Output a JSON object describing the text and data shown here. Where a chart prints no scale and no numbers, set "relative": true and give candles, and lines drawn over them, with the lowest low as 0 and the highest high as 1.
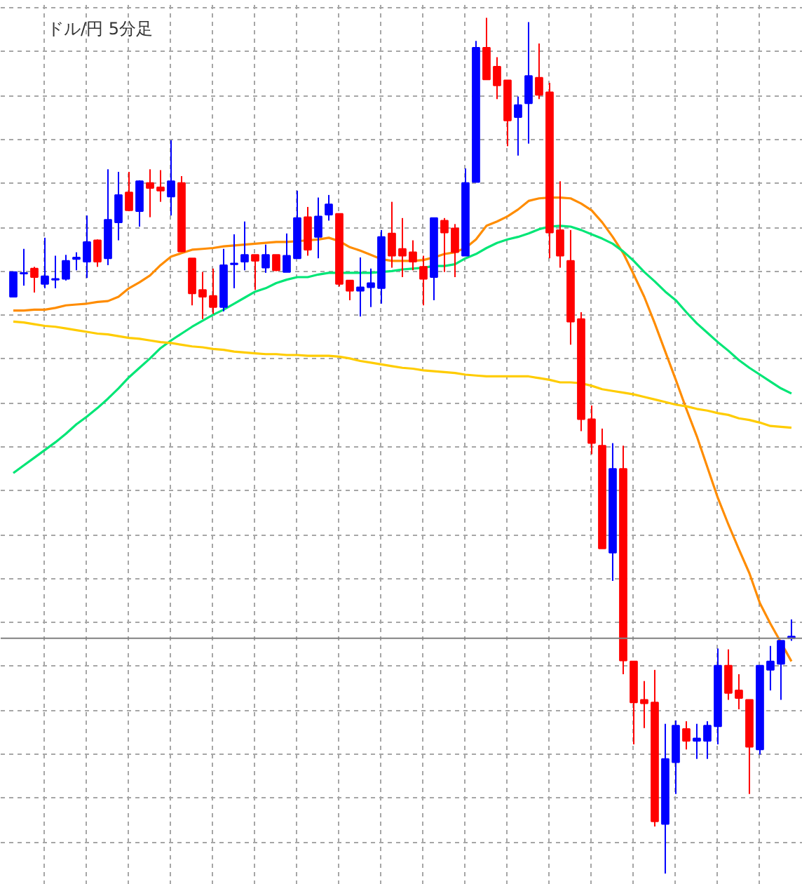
{
  "chart_data": {
    "type": "candlestick",
    "title": "ドル/円 5分足",
    "relative": true,
    "grid": true,
    "tick_labels": false,
    "categories": [
      null,
      null,
      null,
      null,
      null,
      null,
      null,
      null,
      null,
      null,
      null,
      null,
      null,
      null,
      null,
      null,
      null,
      null,
      null,
      null,
      null,
      null,
      null,
      null,
      null,
      null,
      null,
      null,
      null,
      null,
      null,
      null,
      null,
      null,
      null,
      null,
      null,
      null,
      null,
      null,
      null,
      null,
      null,
      null,
      null,
      null,
      null,
      null,
      null,
      null,
      null,
      null,
      null,
      null,
      null,
      null,
      null,
      null,
      null,
      null,
      null,
      null,
      null,
      null,
      null,
      null,
      null,
      null,
      null,
      null,
      null,
      null,
      null,
      null,
      null
    ],
    "ohlc": [
      [
        0.674,
        0.703,
        0.674,
        0.703
      ],
      [
        0.701,
        0.73,
        0.687,
        0.702
      ],
      [
        0.707,
        0.709,
        0.679,
        0.697
      ],
      [
        0.689,
        0.743,
        0.684,
        0.698
      ],
      [
        0.694,
        0.722,
        0.684,
        0.695
      ],
      [
        0.695,
        0.723,
        0.693,
        0.716
      ],
      [
        0.718,
        0.726,
        0.705,
        0.72
      ],
      [
        0.715,
        0.769,
        0.696,
        0.738
      ],
      [
        0.74,
        0.741,
        0.709,
        0.715
      ],
      [
        0.719,
        0.823,
        0.711,
        0.764
      ],
      [
        0.761,
        0.82,
        0.74,
        0.793
      ],
      [
        0.796,
        0.82,
        0.774,
        0.775
      ],
      [
        0.774,
        0.81,
        0.756,
        0.809
      ],
      [
        0.807,
        0.823,
        0.767,
        0.801
      ],
      [
        0.802,
        0.822,
        0.785,
        0.798
      ],
      [
        0.791,
        0.857,
        0.769,
        0.809
      ],
      [
        0.807,
        0.815,
        0.727,
        0.727
      ],
      [
        0.719,
        0.719,
        0.664,
        0.678
      ],
      [
        0.682,
        0.703,
        0.648,
        0.674
      ],
      [
        0.675,
        0.707,
        0.654,
        0.662
      ],
      [
        0.662,
        0.73,
        0.657,
        0.711
      ],
      [
        0.712,
        0.747,
        0.684,
        0.713
      ],
      [
        0.715,
        0.762,
        0.705,
        0.723
      ],
      [
        0.723,
        0.723,
        0.682,
        0.716
      ],
      [
        0.708,
        0.735,
        0.702,
        0.723
      ],
      [
        0.723,
        0.723,
        0.704,
        0.705
      ],
      [
        0.703,
        0.748,
        0.703,
        0.722
      ],
      [
        0.719,
        0.798,
        0.719,
        0.766
      ],
      [
        0.767,
        0.779,
        0.722,
        0.729
      ],
      [
        0.744,
        0.79,
        0.719,
        0.768
      ],
      [
        0.77,
        0.793,
        0.763,
        0.782
      ],
      [
        0.771,
        0.771,
        0.686,
        0.689
      ],
      [
        0.693,
        0.693,
        0.67,
        0.681
      ],
      [
        0.681,
        0.72,
        0.651,
        0.685
      ],
      [
        0.685,
        0.707,
        0.662,
        0.69
      ],
      [
        0.684,
        0.752,
        0.666,
        0.744
      ],
      [
        0.748,
        0.785,
        0.708,
        0.722
      ],
      [
        0.73,
        0.766,
        0.697,
        0.722
      ],
      [
        0.726,
        0.74,
        0.705,
        0.715
      ],
      [
        0.709,
        0.722,
        0.664,
        0.695
      ],
      [
        0.697,
        0.766,
        0.67,
        0.766
      ],
      [
        0.763,
        0.766,
        0.703,
        0.749
      ],
      [
        0.754,
        0.759,
        0.697,
        0.726
      ],
      [
        0.722,
        0.824,
        0.722,
        0.807
      ],
      [
        0.808,
        0.973,
        0.808,
        0.965
      ],
      [
        0.965,
        1,
        0.928,
        0.928
      ],
      [
        0.943,
        0.954,
        0.905,
        0.921
      ],
      [
        0.927,
        0.927,
        0.85,
        0.88
      ],
      [
        0.884,
        0.908,
        0.839,
        0.898
      ],
      [
        0.9,
        0.995,
        0.853,
        0.932
      ],
      [
        0.93,
        0.97,
        0.905,
        0.91
      ],
      [
        0.913,
        0.924,
        0.719,
        0.749
      ],
      [
        0.752,
        0.809,
        0.708,
        0.722
      ],
      [
        0.716,
        0.752,
        0.618,
        0.645
      ],
      [
        0.648,
        0.656,
        0.517,
        0.531
      ],
      [
        0.531,
        0.547,
        0.49,
        0.503
      ],
      [
        0.5,
        0.52,
        0.38,
        0.38
      ],
      [
        0.375,
        0.503,
        0.342,
        0.473
      ],
      [
        0.473,
        0.5,
        0.233,
        0.249
      ],
      [
        0.248,
        0.248,
        0.151,
        0.2
      ],
      [
        0.203,
        0.225,
        0.17,
        0.199
      ],
      [
        0.2,
        0.238,
        0.055,
        0.061
      ],
      [
        0.058,
        0.175,
        0,
        0.134
      ],
      [
        0.13,
        0.179,
        0.093,
        0.173
      ],
      [
        0.169,
        0.178,
        0.145,
        0.155
      ],
      [
        0.155,
        0.175,
        0.134,
        0.158
      ],
      [
        0.155,
        0.178,
        0.134,
        0.173
      ],
      [
        0.172,
        0.263,
        0.151,
        0.243
      ],
      [
        0.243,
        0.262,
        0.203,
        0.211
      ],
      [
        0.214,
        0.233,
        0.192,
        0.205
      ],
      [
        0.203,
        0.203,
        0.093,
        0.148
      ],
      [
        0.145,
        0.243,
        0.139,
        0.243
      ],
      [
        0.238,
        0.266,
        0.214,
        0.248
      ],
      [
        0.245,
        0.272,
        0.203,
        0.272
      ],
      [
        0.275,
        0.297,
        0.272,
        0.277
      ]
    ],
    "colors": [
      "#0000ff",
      "#0000ff",
      "#ff0000",
      "#0000ff",
      "#0000ff",
      "#0000ff",
      "#0000ff",
      "#0000ff",
      "#ff0000",
      "#0000ff",
      "#0000ff",
      "#ff0000",
      "#0000ff",
      "#ff0000",
      "#ff0000",
      "#0000ff",
      "#ff0000",
      "#ff0000",
      "#ff0000",
      "#ff0000",
      "#0000ff",
      "#0000ff",
      "#0000ff",
      "#ff0000",
      "#0000ff",
      "#ff0000",
      "#0000ff",
      "#0000ff",
      "#ff0000",
      "#0000ff",
      "#0000ff",
      "#ff0000",
      "#ff0000",
      "#0000ff",
      "#0000ff",
      "#0000ff",
      "#ff0000",
      "#ff0000",
      "#ff0000",
      "#ff0000",
      "#0000ff",
      "#ff0000",
      "#ff0000",
      "#0000ff",
      "#0000ff",
      "#ff0000",
      "#ff0000",
      "#ff0000",
      "#0000ff",
      "#0000ff",
      "#ff0000",
      "#ff0000",
      "#ff0000",
      "#ff0000",
      "#ff0000",
      "#ff0000",
      "#ff0000",
      "#0000ff",
      "#ff0000",
      "#ff0000",
      "#ff0000",
      "#ff0000",
      "#0000ff",
      "#0000ff",
      "#ff0000",
      "#0000ff",
      "#0000ff",
      "#0000ff",
      "#ff0000",
      "#ff0000",
      "#ff0000",
      "#0000ff",
      "#0000ff",
      "#0000ff",
      "#0000ff"
    ],
    "series": [
      {
        "type": "line",
        "color": "#ff8c00",
        "values": [
          0.658,
          0.658,
          0.659,
          0.659,
          0.661,
          0.664,
          0.665,
          0.666,
          0.668,
          0.669,
          0.674,
          0.684,
          0.691,
          0.699,
          0.711,
          0.721,
          0.725,
          0.729,
          0.73,
          0.731,
          0.733,
          0.734,
          0.735,
          0.736,
          0.737,
          0.738,
          0.738,
          0.739,
          0.74,
          0.741,
          0.743,
          0.739,
          0.732,
          0.728,
          0.723,
          0.718,
          0.716,
          0.716,
          0.716,
          0.717,
          0.72,
          0.724,
          0.726,
          0.731,
          0.741,
          0.757,
          0.762,
          0.768,
          0.776,
          0.786,
          0.789,
          0.79,
          0.79,
          0.789,
          0.783,
          0.775,
          0.761,
          0.744,
          0.725,
          0.7,
          0.674,
          0.643,
          0.61,
          0.577,
          0.543,
          0.511,
          0.475,
          0.439,
          0.408,
          0.379,
          0.351,
          0.316,
          0.292,
          0.27,
          0.248
        ]
      },
      {
        "type": "line",
        "color": "#00e676",
        "values": [
          0.468,
          0.477,
          0.486,
          0.495,
          0.504,
          0.514,
          0.525,
          0.534,
          0.544,
          0.555,
          0.567,
          0.58,
          0.591,
          0.602,
          0.614,
          0.623,
          0.631,
          0.639,
          0.646,
          0.653,
          0.659,
          0.666,
          0.673,
          0.68,
          0.684,
          0.69,
          0.694,
          0.697,
          0.697,
          0.7,
          0.702,
          0.702,
          0.702,
          0.702,
          0.702,
          0.703,
          0.704,
          0.706,
          0.707,
          0.708,
          0.71,
          0.71,
          0.712,
          0.719,
          0.724,
          0.731,
          0.737,
          0.741,
          0.744,
          0.748,
          0.753,
          0.756,
          0.757,
          0.756,
          0.752,
          0.747,
          0.742,
          0.736,
          0.727,
          0.716,
          0.703,
          0.692,
          0.68,
          0.67,
          0.656,
          0.643,
          0.632,
          0.621,
          0.611,
          0.6,
          0.591,
          0.583,
          0.575,
          0.567,
          0.561
        ]
      },
      {
        "type": "line",
        "color": "#ffcc00",
        "values": [
          0.645,
          0.644,
          0.642,
          0.64,
          0.639,
          0.637,
          0.635,
          0.633,
          0.631,
          0.63,
          0.628,
          0.626,
          0.625,
          0.623,
          0.621,
          0.62,
          0.618,
          0.616,
          0.615,
          0.613,
          0.612,
          0.61,
          0.609,
          0.608,
          0.607,
          0.607,
          0.606,
          0.606,
          0.605,
          0.605,
          0.605,
          0.604,
          0.602,
          0.599,
          0.597,
          0.595,
          0.593,
          0.591,
          0.59,
          0.588,
          0.587,
          0.586,
          0.585,
          0.583,
          0.582,
          0.581,
          0.581,
          0.581,
          0.581,
          0.581,
          0.579,
          0.577,
          0.574,
          0.574,
          0.573,
          0.57,
          0.566,
          0.564,
          0.562,
          0.56,
          0.557,
          0.554,
          0.551,
          0.548,
          0.546,
          0.543,
          0.541,
          0.538,
          0.536,
          0.532,
          0.53,
          0.527,
          0.523,
          0.522,
          0.521
        ]
      }
    ],
    "ref_lines": [
      {
        "axis": "y",
        "value": 0.275,
        "color": "#808080"
      }
    ]
  }
}
